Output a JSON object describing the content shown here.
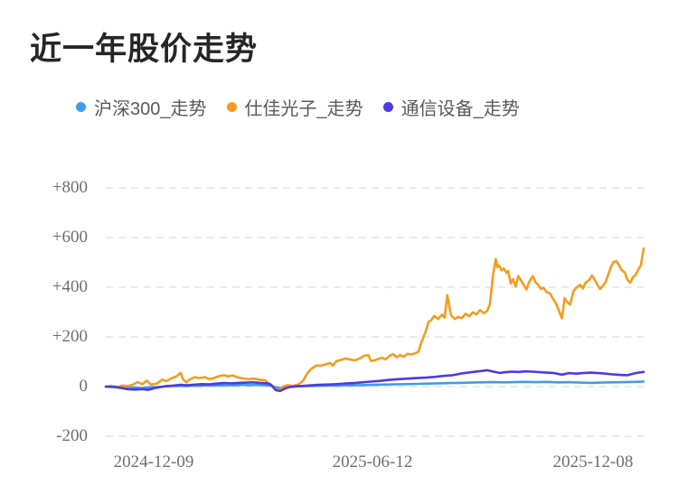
{
  "page": {
    "title": "近一年股价走势"
  },
  "legend": [
    {
      "label": "沪深300_走势",
      "color": "#3f9ce8"
    },
    {
      "label": "仕佳光子_走势",
      "color": "#f79b1e"
    },
    {
      "label": "通信设备_走势",
      "color": "#4b3be4"
    }
  ],
  "chart_data": {
    "type": "line",
    "title": "近一年股价走势",
    "xlabel": "",
    "ylabel": "",
    "ylim": [
      -200,
      800
    ],
    "grid": "horizontal-dashed",
    "legend_position": "top",
    "x_range": [
      "2024-12-09",
      "2025-12-08"
    ],
    "x_tick_labels": [
      "2024-12-09",
      "2025-06-12",
      "2025-12-08"
    ],
    "y_ticks": [
      800,
      600,
      400,
      200,
      0,
      -200
    ],
    "y_tick_labels": [
      "+800",
      "+600",
      "+400",
      "+200",
      "0",
      "-200"
    ],
    "series": [
      {
        "name": "沪深300_走势",
        "color": "#3f9ce8",
        "points": [
          [
            0,
            0
          ],
          [
            0.014,
            1
          ],
          [
            0.027,
            -2
          ],
          [
            0.041,
            -5
          ],
          [
            0.054,
            -4
          ],
          [
            0.068,
            -6
          ],
          [
            0.081,
            -3
          ],
          [
            0.095,
            -2
          ],
          [
            0.108,
            0
          ],
          [
            0.122,
            2
          ],
          [
            0.135,
            3
          ],
          [
            0.149,
            2
          ],
          [
            0.162,
            4
          ],
          [
            0.176,
            3
          ],
          [
            0.189,
            5
          ],
          [
            0.203,
            4
          ],
          [
            0.216,
            6
          ],
          [
            0.23,
            5
          ],
          [
            0.243,
            6
          ],
          [
            0.257,
            7
          ],
          [
            0.27,
            6
          ],
          [
            0.284,
            7
          ],
          [
            0.297,
            5
          ],
          [
            0.307,
            3
          ],
          [
            0.316,
            -2
          ],
          [
            0.324,
            -5
          ],
          [
            0.334,
            -2
          ],
          [
            0.348,
            0
          ],
          [
            0.361,
            1
          ],
          [
            0.375,
            2
          ],
          [
            0.392,
            3
          ],
          [
            0.409,
            4
          ],
          [
            0.426,
            4
          ],
          [
            0.443,
            5
          ],
          [
            0.459,
            5
          ],
          [
            0.476,
            6
          ],
          [
            0.497,
            7
          ],
          [
            0.517,
            8
          ],
          [
            0.537,
            9
          ],
          [
            0.557,
            10
          ],
          [
            0.578,
            11
          ],
          [
            0.598,
            12
          ],
          [
            0.618,
            13
          ],
          [
            0.639,
            14
          ],
          [
            0.659,
            15
          ],
          [
            0.679,
            16
          ],
          [
            0.699,
            17
          ],
          [
            0.72,
            18
          ],
          [
            0.74,
            17
          ],
          [
            0.76,
            18
          ],
          [
            0.78,
            19
          ],
          [
            0.801,
            18
          ],
          [
            0.821,
            19
          ],
          [
            0.841,
            17
          ],
          [
            0.861,
            18
          ],
          [
            0.882,
            16
          ],
          [
            0.902,
            15
          ],
          [
            0.922,
            16
          ],
          [
            0.943,
            17
          ],
          [
            0.963,
            18
          ],
          [
            0.983,
            19
          ],
          [
            1,
            20
          ]
        ]
      },
      {
        "name": "仕佳光子_走势",
        "color": "#f79b1e",
        "points": [
          [
            0,
            0
          ],
          [
            0.01,
            3
          ],
          [
            0.02,
            -3
          ],
          [
            0.03,
            4
          ],
          [
            0.041,
            2
          ],
          [
            0.051,
            8
          ],
          [
            0.059,
            18
          ],
          [
            0.068,
            10
          ],
          [
            0.076,
            24
          ],
          [
            0.084,
            8
          ],
          [
            0.095,
            12
          ],
          [
            0.105,
            28
          ],
          [
            0.113,
            22
          ],
          [
            0.122,
            33
          ],
          [
            0.132,
            42
          ],
          [
            0.139,
            55
          ],
          [
            0.144,
            28
          ],
          [
            0.15,
            17
          ],
          [
            0.157,
            30
          ],
          [
            0.166,
            38
          ],
          [
            0.174,
            34
          ],
          [
            0.184,
            38
          ],
          [
            0.193,
            30
          ],
          [
            0.201,
            34
          ],
          [
            0.211,
            42
          ],
          [
            0.22,
            46
          ],
          [
            0.228,
            41
          ],
          [
            0.236,
            45
          ],
          [
            0.245,
            37
          ],
          [
            0.255,
            33
          ],
          [
            0.265,
            30
          ],
          [
            0.275,
            32
          ],
          [
            0.285,
            28
          ],
          [
            0.296,
            25
          ],
          [
            0.304,
            12
          ],
          [
            0.313,
            -4
          ],
          [
            0.321,
            -16
          ],
          [
            0.329,
            0
          ],
          [
            0.338,
            6
          ],
          [
            0.348,
            3
          ],
          [
            0.358,
            8
          ],
          [
            0.367,
            24
          ],
          [
            0.375,
            54
          ],
          [
            0.383,
            73
          ],
          [
            0.392,
            85
          ],
          [
            0.4,
            84
          ],
          [
            0.409,
            90
          ],
          [
            0.417,
            95
          ],
          [
            0.422,
            85
          ],
          [
            0.429,
            103
          ],
          [
            0.438,
            108
          ],
          [
            0.446,
            113
          ],
          [
            0.454,
            109
          ],
          [
            0.463,
            106
          ],
          [
            0.471,
            112
          ],
          [
            0.48,
            124
          ],
          [
            0.488,
            127
          ],
          [
            0.493,
            104
          ],
          [
            0.5,
            106
          ],
          [
            0.507,
            112
          ],
          [
            0.514,
            116
          ],
          [
            0.52,
            110
          ],
          [
            0.527,
            123
          ],
          [
            0.534,
            131
          ],
          [
            0.541,
            118
          ],
          [
            0.547,
            127
          ],
          [
            0.554,
            120
          ],
          [
            0.561,
            132
          ],
          [
            0.568,
            129
          ],
          [
            0.574,
            133
          ],
          [
            0.581,
            140
          ],
          [
            0.588,
            185
          ],
          [
            0.595,
            222
          ],
          [
            0.6,
            260
          ],
          [
            0.605,
            268
          ],
          [
            0.611,
            284
          ],
          [
            0.618,
            272
          ],
          [
            0.625,
            290
          ],
          [
            0.63,
            278
          ],
          [
            0.635,
            368
          ],
          [
            0.642,
            287
          ],
          [
            0.649,
            272
          ],
          [
            0.655,
            280
          ],
          [
            0.662,
            276
          ],
          [
            0.669,
            293
          ],
          [
            0.676,
            283
          ],
          [
            0.682,
            299
          ],
          [
            0.689,
            291
          ],
          [
            0.696,
            308
          ],
          [
            0.703,
            295
          ],
          [
            0.709,
            305
          ],
          [
            0.714,
            330
          ],
          [
            0.72,
            450
          ],
          [
            0.725,
            513
          ],
          [
            0.728,
            480
          ],
          [
            0.731,
            488
          ],
          [
            0.736,
            468
          ],
          [
            0.74,
            476
          ],
          [
            0.745,
            458
          ],
          [
            0.748,
            465
          ],
          [
            0.753,
            415
          ],
          [
            0.757,
            433
          ],
          [
            0.762,
            403
          ],
          [
            0.767,
            445
          ],
          [
            0.772,
            427
          ],
          [
            0.777,
            409
          ],
          [
            0.782,
            391
          ],
          [
            0.787,
            421
          ],
          [
            0.794,
            445
          ],
          [
            0.799,
            420
          ],
          [
            0.804,
            410
          ],
          [
            0.809,
            393
          ],
          [
            0.814,
            398
          ],
          [
            0.819,
            382
          ],
          [
            0.826,
            375
          ],
          [
            0.831,
            356
          ],
          [
            0.838,
            330
          ],
          [
            0.843,
            302
          ],
          [
            0.848,
            275
          ],
          [
            0.853,
            356
          ],
          [
            0.858,
            340
          ],
          [
            0.863,
            331
          ],
          [
            0.87,
            385
          ],
          [
            0.875,
            398
          ],
          [
            0.882,
            410
          ],
          [
            0.887,
            395
          ],
          [
            0.892,
            418
          ],
          [
            0.899,
            430
          ],
          [
            0.904,
            447
          ],
          [
            0.909,
            430
          ],
          [
            0.914,
            410
          ],
          [
            0.919,
            393
          ],
          [
            0.924,
            405
          ],
          [
            0.929,
            420
          ],
          [
            0.934,
            450
          ],
          [
            0.939,
            480
          ],
          [
            0.944,
            502
          ],
          [
            0.949,
            505
          ],
          [
            0.954,
            490
          ],
          [
            0.959,
            470
          ],
          [
            0.965,
            459
          ],
          [
            0.97,
            430
          ],
          [
            0.975,
            418
          ],
          [
            0.98,
            440
          ],
          [
            0.985,
            450
          ],
          [
            0.99,
            470
          ],
          [
            0.995,
            490
          ],
          [
            1,
            556
          ]
        ]
      },
      {
        "name": "通信设备_走势",
        "color": "#4b3be4",
        "points": [
          [
            0,
            0
          ],
          [
            0.017,
            -2
          ],
          [
            0.029,
            -6
          ],
          [
            0.041,
            -11
          ],
          [
            0.054,
            -12
          ],
          [
            0.068,
            -10
          ],
          [
            0.079,
            -13
          ],
          [
            0.091,
            -6
          ],
          [
            0.101,
            -2
          ],
          [
            0.113,
            2
          ],
          [
            0.125,
            4
          ],
          [
            0.139,
            7
          ],
          [
            0.152,
            5
          ],
          [
            0.166,
            8
          ],
          [
            0.179,
            10
          ],
          [
            0.193,
            9
          ],
          [
            0.206,
            12
          ],
          [
            0.22,
            14
          ],
          [
            0.233,
            13
          ],
          [
            0.247,
            15
          ],
          [
            0.26,
            16
          ],
          [
            0.274,
            17
          ],
          [
            0.287,
            15
          ],
          [
            0.299,
            13
          ],
          [
            0.307,
            8
          ],
          [
            0.316,
            -14
          ],
          [
            0.324,
            -18
          ],
          [
            0.333,
            -8
          ],
          [
            0.341,
            -2
          ],
          [
            0.355,
            1
          ],
          [
            0.368,
            3
          ],
          [
            0.382,
            5
          ],
          [
            0.395,
            7
          ],
          [
            0.409,
            8
          ],
          [
            0.422,
            9
          ],
          [
            0.436,
            11
          ],
          [
            0.449,
            13
          ],
          [
            0.463,
            14
          ],
          [
            0.476,
            17
          ],
          [
            0.493,
            20
          ],
          [
            0.51,
            23
          ],
          [
            0.527,
            27
          ],
          [
            0.544,
            30
          ],
          [
            0.561,
            32
          ],
          [
            0.578,
            34
          ],
          [
            0.595,
            36
          ],
          [
            0.611,
            39
          ],
          [
            0.628,
            43
          ],
          [
            0.645,
            46
          ],
          [
            0.662,
            53
          ],
          [
            0.679,
            58
          ],
          [
            0.696,
            62
          ],
          [
            0.709,
            66
          ],
          [
            0.721,
            60
          ],
          [
            0.733,
            55
          ],
          [
            0.743,
            58
          ],
          [
            0.755,
            60
          ],
          [
            0.767,
            59
          ],
          [
            0.78,
            61
          ],
          [
            0.794,
            60
          ],
          [
            0.807,
            58
          ],
          [
            0.821,
            56
          ],
          [
            0.834,
            54
          ],
          [
            0.848,
            48
          ],
          [
            0.861,
            54
          ],
          [
            0.875,
            52
          ],
          [
            0.889,
            55
          ],
          [
            0.902,
            56
          ],
          [
            0.916,
            54
          ],
          [
            0.929,
            52
          ],
          [
            0.943,
            49
          ],
          [
            0.956,
            47
          ],
          [
            0.97,
            46
          ],
          [
            0.983,
            53
          ],
          [
            0.993,
            57
          ],
          [
            1,
            59
          ]
        ]
      }
    ]
  }
}
